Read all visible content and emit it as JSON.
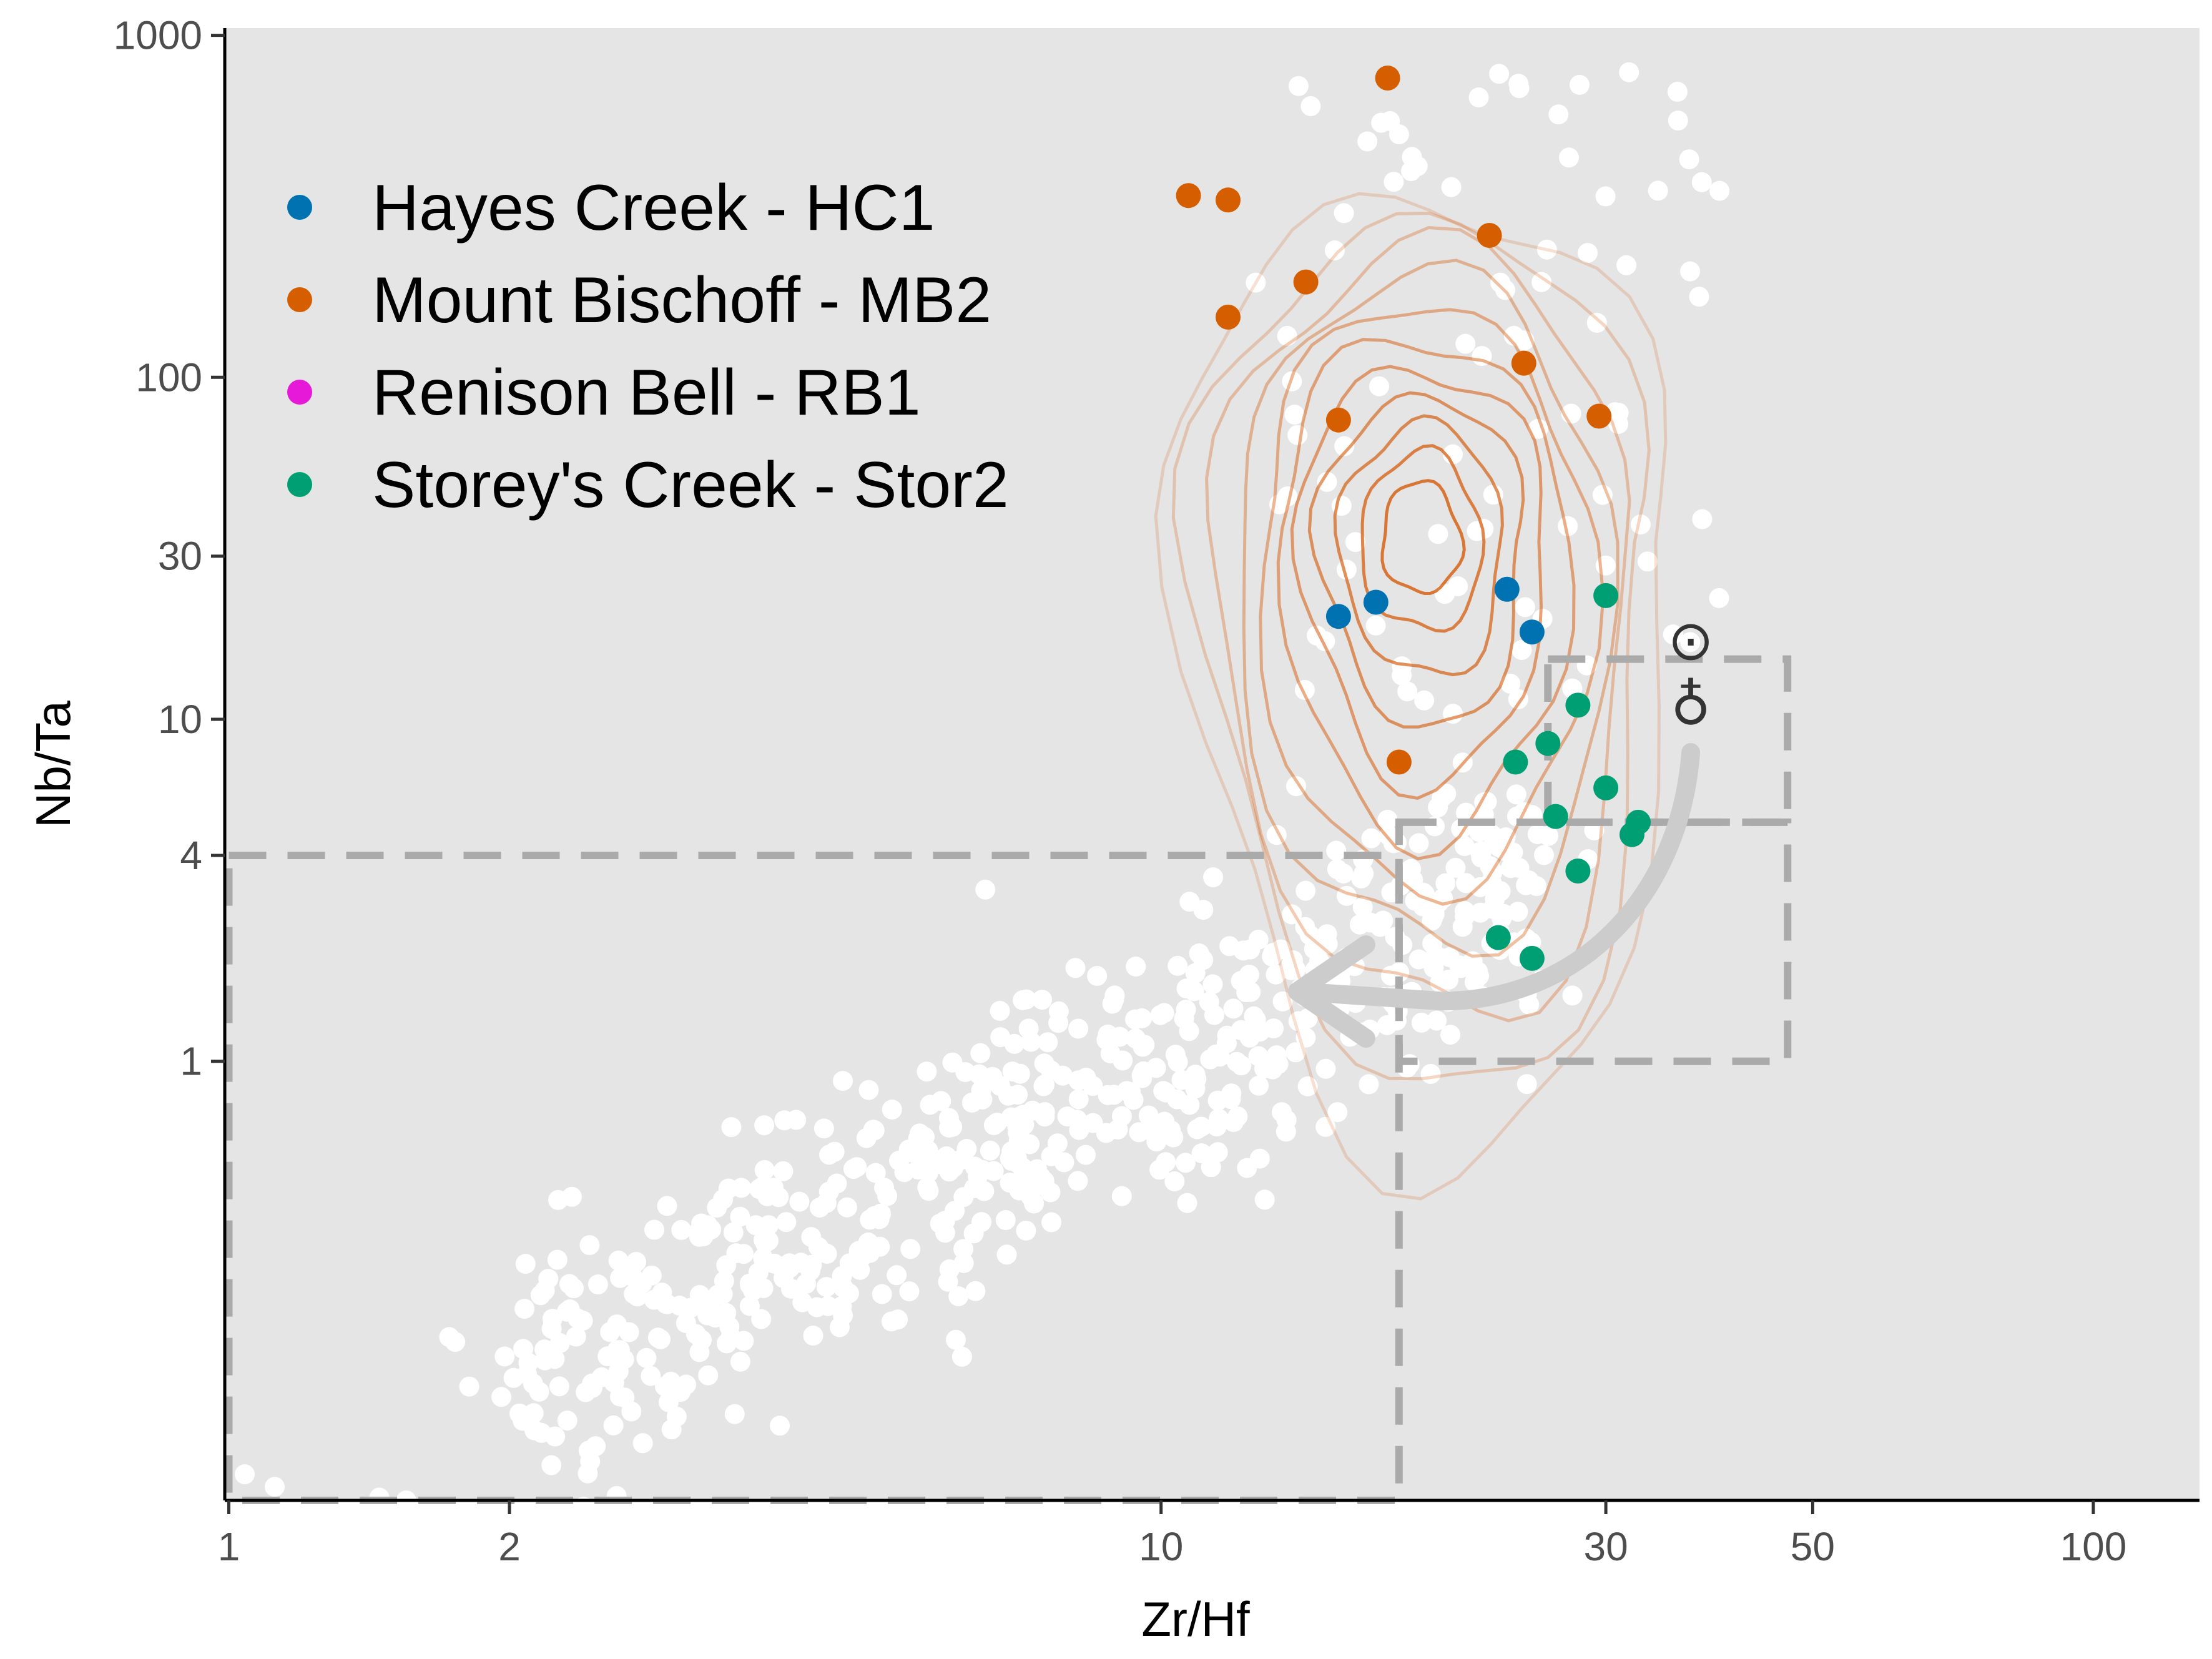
{
  "chart_data": {
    "type": "scatter",
    "xlabel": "Zr/Hf",
    "ylabel": "Nb/Ta",
    "x_scale": "log",
    "y_scale": "log",
    "xlim": [
      0.99,
      130
    ],
    "ylim": [
      0.052,
      1050
    ],
    "x_ticks": [
      1,
      2,
      10,
      30,
      50,
      100
    ],
    "x_tick_labels": [
      "1",
      "2",
      "10",
      "30",
      "50",
      "100"
    ],
    "y_ticks": [
      1,
      4,
      10,
      30,
      100,
      1000
    ],
    "y_tick_labels": [
      "1",
      "4",
      "10",
      "30",
      "100",
      "1000"
    ],
    "grid": false,
    "legend_position": "top-left",
    "colors": {
      "panel_background": "#e5e5e5",
      "reference_points": "#ffffff",
      "density_contours": "#d35400",
      "reference_boxes": "#aaaaaa",
      "arrow": "#cccccc",
      "symbols": "#333333"
    },
    "symbols": [
      {
        "glyph": "⊙",
        "x": 37,
        "y": 17
      },
      {
        "glyph": "♁",
        "x": 37,
        "y": 11
      }
    ],
    "reference_boxes": [
      {
        "x": [
          1,
          18
        ],
        "y": [
          0.052,
          4
        ]
      },
      {
        "x": [
          18,
          47
        ],
        "y": [
          1,
          5
        ]
      },
      {
        "x": [
          26,
          47
        ],
        "y": [
          5,
          15
        ]
      }
    ],
    "arrow": {
      "path": [
        [
          37,
          8
        ],
        [
          36,
          3
        ],
        [
          28,
          1.5
        ],
        [
          20,
          1.5
        ],
        [
          14,
          1.6
        ]
      ],
      "direction": "left"
    },
    "density_contours": {
      "center": [
        19,
        33
      ],
      "levels": 11
    },
    "series": [
      {
        "name": "Hayes Creek - HC1",
        "color": "#0072b2",
        "points": [
          [
            15.5,
            20
          ],
          [
            17,
            22
          ],
          [
            23.5,
            24
          ],
          [
            25,
            18
          ]
        ]
      },
      {
        "name": "Mount Bischoff - MB2",
        "color": "#d55e00",
        "points": [
          [
            17.5,
            750
          ],
          [
            10.7,
            340
          ],
          [
            11.8,
            330
          ],
          [
            14.3,
            190
          ],
          [
            11.8,
            150
          ],
          [
            22.5,
            260
          ],
          [
            24.5,
            110
          ],
          [
            15.5,
            75
          ],
          [
            29.5,
            77
          ],
          [
            18,
            7.5
          ]
        ]
      },
      {
        "name": "Renison Bell - RB1",
        "color": "#e619d9",
        "points": []
      },
      {
        "name": "Storey's Creek - Stor2",
        "color": "#009e73",
        "points": [
          [
            30,
            23
          ],
          [
            28,
            11
          ],
          [
            26,
            8.5
          ],
          [
            24,
            7.5
          ],
          [
            30,
            6.3
          ],
          [
            26.5,
            5.2
          ],
          [
            32.5,
            5
          ],
          [
            32,
            4.6
          ],
          [
            28,
            3.6
          ],
          [
            23,
            2.3
          ],
          [
            25,
            2
          ]
        ]
      }
    ]
  }
}
